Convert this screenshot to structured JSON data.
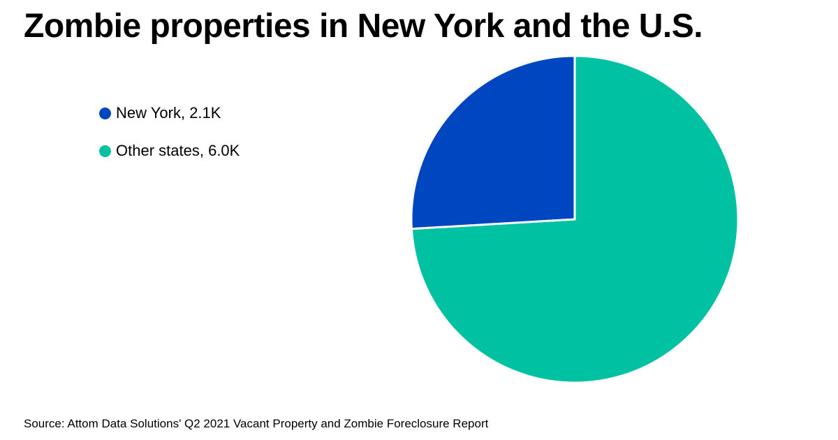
{
  "chart_data": {
    "type": "pie",
    "title": "Zombie properties in New York and the U.S.",
    "slices": [
      {
        "label": "New York",
        "display_value": "2.1K",
        "value": 2.1,
        "color": "#0046c0"
      },
      {
        "label": "Other states",
        "display_value": "6.0K",
        "value": 6.0,
        "color": "#00c1a1"
      }
    ],
    "legend_position": "top-left",
    "source": "Source: Attom Data Solutions' Q2 2021 Vacant Property and Zombie Foreclosure Report"
  }
}
